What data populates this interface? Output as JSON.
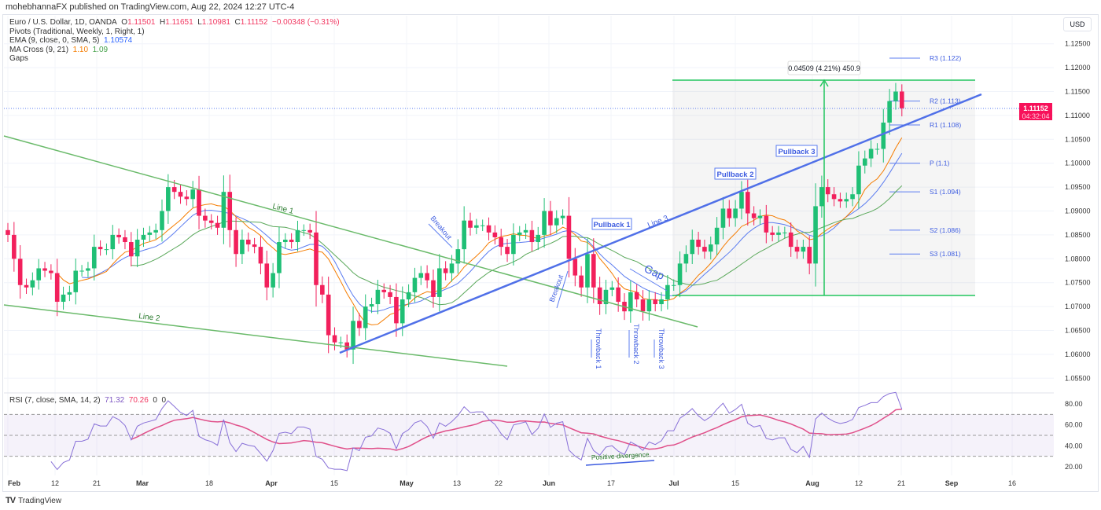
{
  "header": {
    "published": "mohebhannaFX published on TradingView.com, Aug 22, 2024 12:27 UTC-4",
    "symbol": "Euro / U.S. Dollar, 1D, OANDA",
    "ohlc": {
      "o_label": "O",
      "o": "1.11501",
      "h_label": "H",
      "h": "1.11651",
      "l_label": "L",
      "l": "1.10981",
      "c_label": "C",
      "c": "1.11152",
      "change": "−0.00348 (−0.31%)"
    },
    "pivots": "Pivots (Traditional, Weekly, 1, Right, 1)",
    "ema": {
      "label": "EMA (9, close, 0, SMA, 5)",
      "value": "1.10574"
    },
    "ma_cross": {
      "label": "MA Cross (9, 21)",
      "fast": "1.10",
      "slow": "1.09"
    },
    "gaps": "Gaps",
    "rsi": {
      "label": "RSI (7, close, SMA, 14, 2)",
      "rsi": "71.32",
      "ma": "70.26",
      "z1": "0",
      "z2": "0"
    }
  },
  "price_axis": {
    "currency": "USD",
    "ticks": [
      "1.12500",
      "1.12000",
      "1.11500",
      "1.11000",
      "1.10500",
      "1.10000",
      "1.09500",
      "1.09000",
      "1.08500",
      "1.08000",
      "1.07500",
      "1.07000",
      "1.06500",
      "1.06000",
      "1.05500"
    ],
    "last_price": "1.11152",
    "countdown": "04:32:04"
  },
  "rsi_axis": {
    "ticks": [
      "80.00",
      "60.00",
      "40.00",
      "20.00"
    ]
  },
  "time_axis": {
    "labels": [
      "Feb",
      "12",
      "21",
      "Mar",
      "18",
      "Apr",
      "15",
      "May",
      "13",
      "22",
      "Jun",
      "17",
      "Jul",
      "15",
      "Aug",
      "12",
      "21",
      "Sep",
      "16"
    ]
  },
  "annotations": {
    "line1": "Line 1",
    "line2": "Line 2",
    "line3": "Line 3",
    "breakout1": "Breakout",
    "breakout2": "Breakout",
    "pullback1": "Pullback 1",
    "pullback2": "Pullback 2",
    "pullback3": "Pullback 3",
    "gap": "Gap",
    "throwback1": "Throwback 1",
    "throwback2": "Throwback 2",
    "throwback3": "Throwback 3",
    "positive_divergence": "Positive divergence",
    "measure": "0.04509 (4.21%) 450.9"
  },
  "pivot_levels": [
    {
      "label": "R3 (1.122)",
      "value": 1.122
    },
    {
      "label": "R2 (1.113)",
      "value": 1.113
    },
    {
      "label": "R1 (1.108)",
      "value": 1.108
    },
    {
      "label": "P (1.1)",
      "value": 1.1
    },
    {
      "label": "S1 (1.094)",
      "value": 1.094
    },
    {
      "label": "S2 (1.086)",
      "value": 1.086
    },
    {
      "label": "S3 (1.081)",
      "value": 1.081
    }
  ],
  "colors": {
    "up": "#1fbf75",
    "down": "#f2205c",
    "ema": "#5b7cf0",
    "ma_fast": "#f57c00",
    "ma_slow": "#5aa85a",
    "line": "#6aba6a",
    "line3": "#5070e8",
    "rsi": "#8870d8",
    "rsi_ma": "#e0508a",
    "measure": "#22c55e",
    "price_tag": "#f7115a"
  },
  "footer": {
    "brand": "TradingView"
  },
  "chart_data": {
    "type": "candlestick",
    "title": "Euro / U.S. Dollar, 1D, OANDA",
    "ylim": [
      1.052,
      1.128
    ],
    "x_range": [
      "2024-02-01",
      "2024-09-20"
    ],
    "last_candle": {
      "open": 1.11501,
      "high": 1.11651,
      "low": 1.10981,
      "close": 1.11152
    },
    "months": [
      {
        "month": "Feb",
        "closes": [
          1.085,
          1.08,
          1.0745,
          1.074,
          1.0755,
          1.078,
          1.0775,
          1.077,
          1.071,
          1.0725,
          1.073,
          1.0775,
          1.0775,
          1.078,
          1.0825,
          1.082,
          1.082,
          1.085,
          1.0845,
          1.0835,
          1.0805
        ]
      },
      {
        "month": "Mar",
        "closes": [
          1.084,
          1.085,
          1.0855,
          1.086,
          1.09,
          1.095,
          1.094,
          1.093,
          1.0925,
          1.0945,
          1.089,
          1.088,
          1.0875,
          1.0865,
          1.094,
          1.086,
          1.081,
          1.084,
          1.083,
          1.0825,
          1.079
        ]
      },
      {
        "month": "Apr",
        "closes": [
          1.074,
          1.077,
          1.0835,
          1.084,
          1.0835,
          1.086,
          1.086,
          1.0855,
          1.0745,
          1.0725,
          1.064,
          1.0625,
          1.0625,
          1.061,
          1.067,
          1.0655,
          1.07,
          1.0705,
          1.0735,
          1.073,
          1.072,
          1.0665
        ]
      },
      {
        "month": "May",
        "closes": [
          1.0715,
          1.073,
          1.076,
          1.077,
          1.0755,
          1.072,
          1.078,
          1.077,
          1.079,
          1.082,
          1.088,
          1.0865,
          1.087,
          1.087,
          1.0855,
          1.0845,
          1.0825,
          1.081,
          1.085,
          1.0855,
          1.086,
          1.0835,
          1.085
        ]
      },
      {
        "month": "Jun",
        "closes": [
          1.09,
          1.087,
          1.0885,
          1.089,
          1.08,
          1.0765,
          1.074,
          1.081,
          1.074,
          1.0705,
          1.0735,
          1.074,
          1.071,
          1.069,
          1.073,
          1.0715,
          1.069,
          1.0715,
          1.0705,
          1.0715
        ]
      },
      {
        "month": "Jul",
        "closes": [
          1.0745,
          1.0745,
          1.079,
          1.081,
          1.084,
          1.0825,
          1.0815,
          1.083,
          1.0865,
          1.0905,
          1.0885,
          1.0905,
          1.094,
          1.0895,
          1.0885,
          1.089,
          1.0855,
          1.085,
          1.0855,
          1.0855,
          1.0825,
          1.0815,
          1.0825
        ]
      },
      {
        "month": "Aug",
        "closes": [
          1.079,
          1.091,
          1.095,
          1.0935,
          1.0925,
          1.092,
          1.0925,
          1.0935,
          1.0995,
          1.101,
          1.103,
          1.103,
          1.1085,
          1.113,
          1.115,
          1.1115
        ]
      }
    ],
    "measure": {
      "from": 1.0724,
      "to": 1.1175,
      "change": "0.04509 (4.21%) 450.9"
    },
    "rsi": {
      "ylim": [
        15,
        88
      ],
      "bands": [
        70,
        50,
        30
      ]
    }
  }
}
